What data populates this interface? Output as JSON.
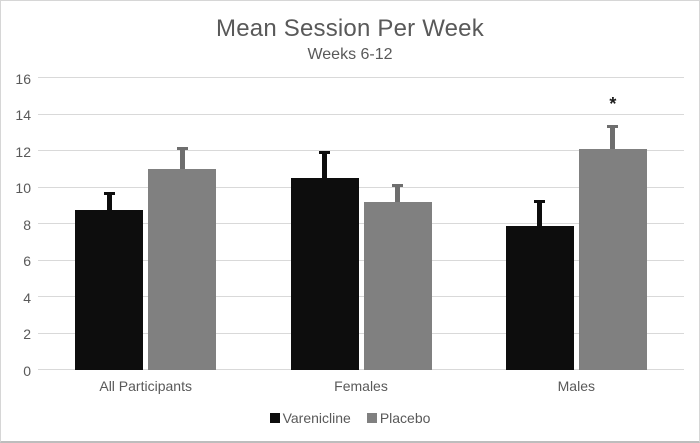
{
  "chart_data": {
    "type": "bar",
    "title": "Mean Session Per Week",
    "subtitle": "Weeks 6-12",
    "categories": [
      "All Participants",
      "Females",
      "Males"
    ],
    "series": [
      {
        "name": "Varenicline",
        "color": "#0d0d0d",
        "error_color": "#0d0d0d",
        "values": [
          8.75,
          10.5,
          7.9
        ],
        "errors": [
          1.0,
          1.5,
          1.4
        ]
      },
      {
        "name": "Placebo",
        "color": "#808080",
        "error_color": "#6e6e6e",
        "values": [
          11.0,
          9.2,
          12.1
        ],
        "errors": [
          1.2,
          1.0,
          1.3
        ]
      }
    ],
    "annotations": [
      {
        "series": "Placebo",
        "category": "Males",
        "text": "*"
      }
    ],
    "ylim": [
      0,
      16
    ],
    "yticks": [
      0,
      2,
      4,
      6,
      8,
      10,
      12,
      14,
      16
    ],
    "xlabel": "",
    "ylabel": "",
    "grid": true,
    "legend_position": "bottom",
    "colors": {
      "text": "#595959",
      "gridline": "#d9d9d9",
      "background": "#ffffff",
      "border": "#d6d6d6"
    }
  }
}
